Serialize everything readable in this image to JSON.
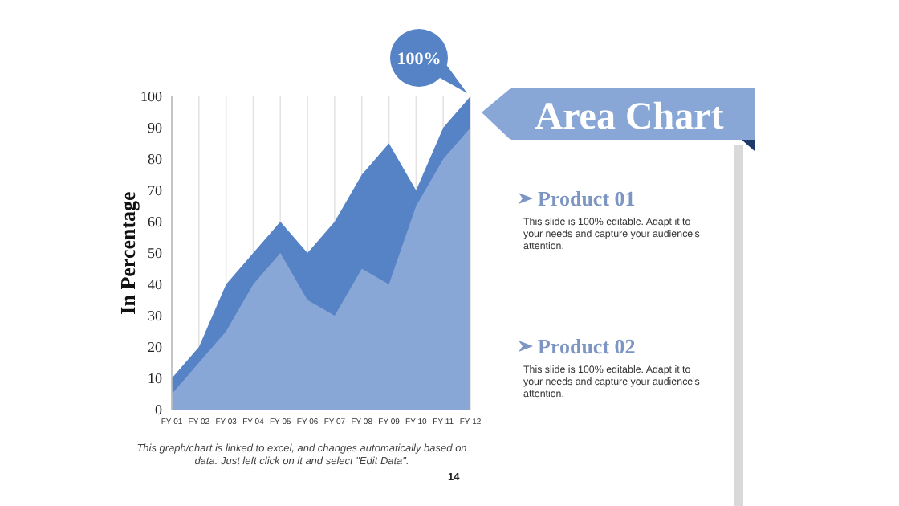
{
  "chart_data": {
    "type": "area",
    "title": "Area Chart",
    "ylabel": "In Percentage",
    "categories": [
      "FY 01",
      "FY 02",
      "FY 03",
      "FY 04",
      "FY 05",
      "FY 06",
      "FY 07",
      "FY 08",
      "FY 09",
      "FY 10",
      "FY 11",
      "FY 12"
    ],
    "series": [
      {
        "color": "#5583c6",
        "values": [
          10,
          20,
          40,
          50,
          60,
          50,
          60,
          75,
          85,
          70,
          90,
          100
        ]
      },
      {
        "color": "#88a7d7",
        "values": [
          5,
          15,
          25,
          40,
          50,
          35,
          30,
          45,
          40,
          65,
          80,
          90
        ]
      }
    ],
    "ylim": [
      0,
      100
    ],
    "yticks": [
      0,
      10,
      20,
      30,
      40,
      50,
      60,
      70,
      80,
      90,
      100
    ],
    "grid": "x",
    "annotations": [
      {
        "text": "100%",
        "x": "FY 12",
        "y": 100
      },
      "Product 01",
      "This slide is 100% editable. Adapt it to your needs and capture your audience's attention.",
      "Product 02",
      "This slide is 100% editable. Adapt it to your needs and capture your audience's attention.",
      "This graph/chart is linked to excel, and changes automatically based on data. Just left click on it and select \"Edit Data\".",
      "14"
    ]
  }
}
